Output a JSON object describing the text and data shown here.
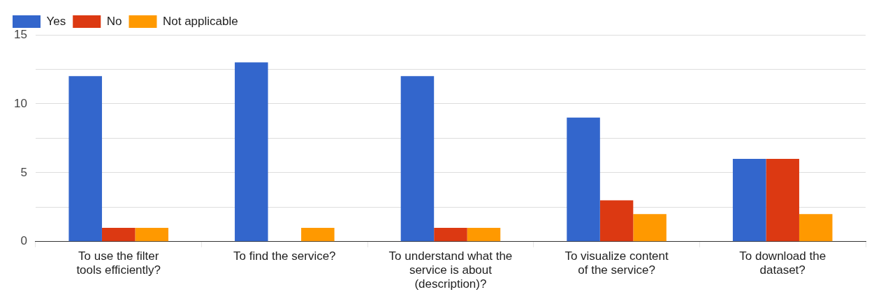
{
  "chart_data": {
    "type": "bar",
    "categories": [
      "To use the filter tools efficiently?",
      "To find the service?",
      "To understand what the service is about (description)?",
      "To visualize content of the service?",
      "To download the dataset?"
    ],
    "series": [
      {
        "name": "Yes",
        "color": "#3366cc",
        "values": [
          12,
          13,
          12,
          9,
          6
        ]
      },
      {
        "name": "No",
        "color": "#dc3912",
        "values": [
          1,
          0,
          1,
          3,
          6
        ]
      },
      {
        "name": "Not applicable",
        "color": "#ff9900",
        "values": [
          1,
          1,
          1,
          2,
          2
        ]
      }
    ],
    "ylim": [
      0,
      15
    ],
    "yticks": [
      0,
      {
        "value": 2.5,
        "label": null
      },
      5,
      {
        "value": 7.5,
        "label": null
      },
      10,
      {
        "value": 12.5,
        "label": null
      },
      15
    ],
    "grid": true,
    "legend": "top left"
  }
}
